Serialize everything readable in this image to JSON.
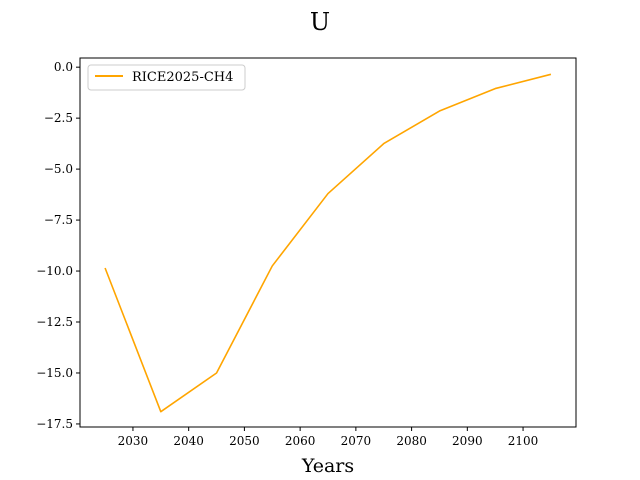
{
  "chart_data": {
    "type": "line",
    "title": "U",
    "xlabel": "Years",
    "ylabel": "",
    "xlim": [
      2020.5,
      2109.5
    ],
    "ylim": [
      -17.65,
      0.45
    ],
    "xticks": [
      2030,
      2040,
      2050,
      2060,
      2070,
      2080,
      2090,
      2100
    ],
    "yticks": [
      0.0,
      -2.5,
      -5.0,
      -7.5,
      -10.0,
      -12.5,
      -15.0,
      -17.5
    ],
    "ytick_labels": [
      "0.0",
      "−2.5",
      "−5.0",
      "−7.5",
      "−10.0",
      "−12.5",
      "−15.0",
      "−17.5"
    ],
    "grid": false,
    "legend_position": "upper-left",
    "series": [
      {
        "name": "RICE2025-CH4",
        "color": "#ffa500",
        "x": [
          2025,
          2035,
          2045,
          2055,
          2065,
          2075,
          2085,
          2095,
          2105
        ],
        "y": [
          -9.85,
          -16.9,
          -15.0,
          -9.75,
          -6.2,
          -3.75,
          -2.15,
          -1.05,
          -0.35
        ]
      }
    ]
  }
}
